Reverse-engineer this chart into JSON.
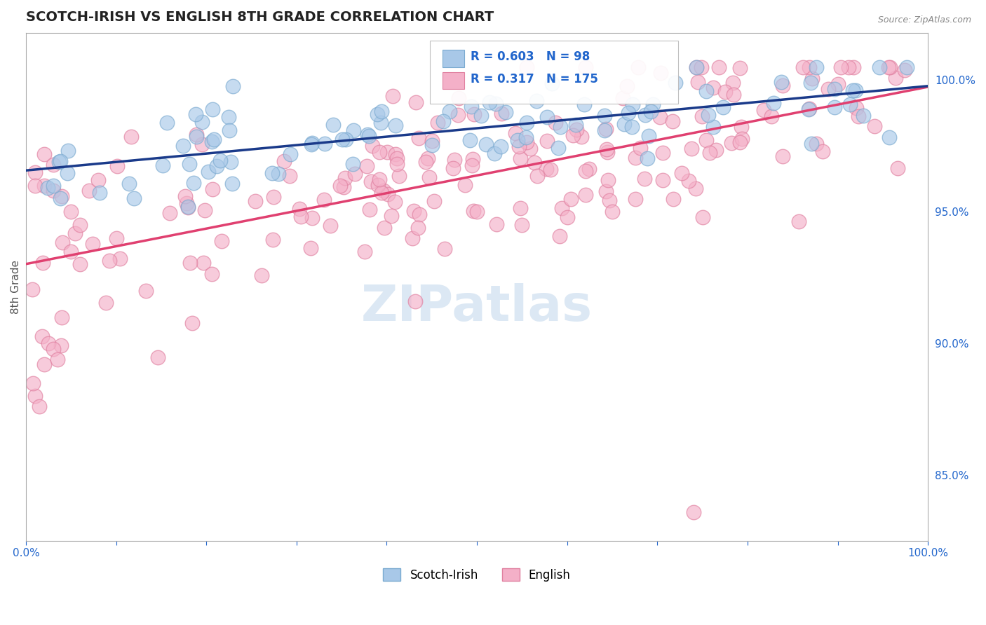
{
  "title": "SCOTCH-IRISH VS ENGLISH 8TH GRADE CORRELATION CHART",
  "source": "Source: ZipAtlas.com",
  "ylabel": "8th Grade",
  "ylabel_right_ticks": [
    85.0,
    90.0,
    95.0,
    100.0
  ],
  "xmin": 0.0,
  "xmax": 1.0,
  "ymin": 0.825,
  "ymax": 1.018,
  "scotch_irish_R": 0.603,
  "scotch_irish_N": 98,
  "english_R": 0.317,
  "english_N": 175,
  "scotch_irish_color": "#a8c8e8",
  "scotch_irish_edge_color": "#7aaad0",
  "scotch_irish_line_color": "#1a3a8a",
  "english_color": "#f4b0c8",
  "english_edge_color": "#e080a0",
  "english_line_color": "#e04070",
  "background_color": "#ffffff",
  "grid_color": "#cccccc",
  "title_color": "#222222",
  "annotation_color": "#2266cc",
  "watermark_color": "#dce8f4",
  "scotch_irish_seed": 7,
  "english_seed": 11
}
